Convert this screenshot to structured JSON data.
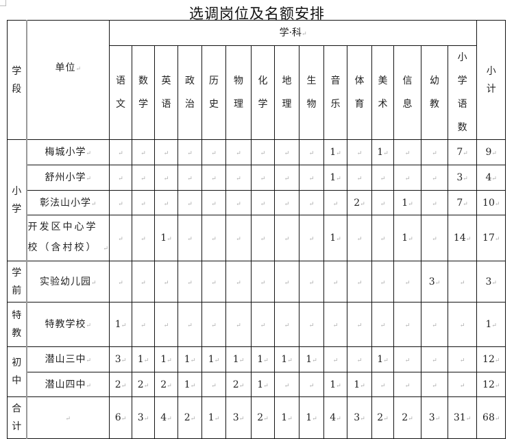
{
  "title": "选调岗位及名额安排",
  "headers": {
    "segment": "学段",
    "unit": "单位",
    "subject_group": "学·科",
    "subtotal": "小计",
    "subjects": [
      "语文",
      "数学",
      "英语",
      "政治",
      "历史",
      "物理",
      "化学",
      "地理",
      "生物",
      "音乐",
      "体育",
      "美术",
      "信息",
      "幼教",
      "小学语数"
    ]
  },
  "paragraph_mark": "↵",
  "groups": [
    {
      "segment": "小学",
      "rows": [
        {
          "unit": "梅城小学",
          "values": [
            "",
            "",
            "",
            "",
            "",
            "",
            "",
            "",
            "",
            "1",
            "",
            "1",
            "",
            "",
            "7"
          ],
          "subtotal": "9"
        },
        {
          "unit": "舒州小学",
          "values": [
            "",
            "",
            "",
            "",
            "",
            "",
            "",
            "",
            "",
            "1",
            "",
            "",
            "",
            "",
            "3"
          ],
          "subtotal": "4"
        },
        {
          "unit": "彰法山小学",
          "values": [
            "",
            "",
            "",
            "",
            "",
            "",
            "",
            "",
            "",
            "",
            "2",
            "",
            "1",
            "",
            "7"
          ],
          "subtotal": "10"
        },
        {
          "unit": "开发区中心学校（含村校）",
          "values": [
            "",
            "",
            "1",
            "",
            "",
            "",
            "",
            "",
            "",
            "1",
            "",
            "",
            "1",
            "",
            "14"
          ],
          "subtotal": "17"
        }
      ]
    },
    {
      "segment": "学前",
      "rows": [
        {
          "unit": "实验幼儿园",
          "values": [
            "",
            "",
            "",
            "",
            "",
            "",
            "",
            "",
            "",
            "",
            "",
            "",
            "",
            "3",
            ""
          ],
          "subtotal": "3"
        }
      ]
    },
    {
      "segment": "特教",
      "rows": [
        {
          "unit": "特教学校",
          "values": [
            "1",
            "",
            "",
            "",
            "",
            "",
            "",
            "",
            "",
            "",
            "",
            "",
            "",
            "",
            ""
          ],
          "subtotal": "1"
        }
      ]
    },
    {
      "segment": "初中",
      "rows": [
        {
          "unit": "潜山三中",
          "values": [
            "3",
            "1",
            "1",
            "1",
            "1",
            "1",
            "1",
            "1",
            "1",
            "",
            "",
            "1",
            "",
            "",
            ""
          ],
          "subtotal": "12"
        },
        {
          "unit": "潜山四中",
          "values": [
            "2",
            "2",
            "2",
            "1",
            "",
            "2",
            "1",
            "",
            "",
            "1",
            "1",
            "",
            "",
            "",
            ""
          ],
          "subtotal": "12"
        }
      ]
    },
    {
      "segment": "合计",
      "rows": [
        {
          "unit": "",
          "values": [
            "6",
            "3",
            "4",
            "2",
            "1",
            "3",
            "2",
            "1",
            "1",
            "4",
            "3",
            "2",
            "2",
            "3",
            "31"
          ],
          "subtotal": "68"
        }
      ]
    }
  ]
}
